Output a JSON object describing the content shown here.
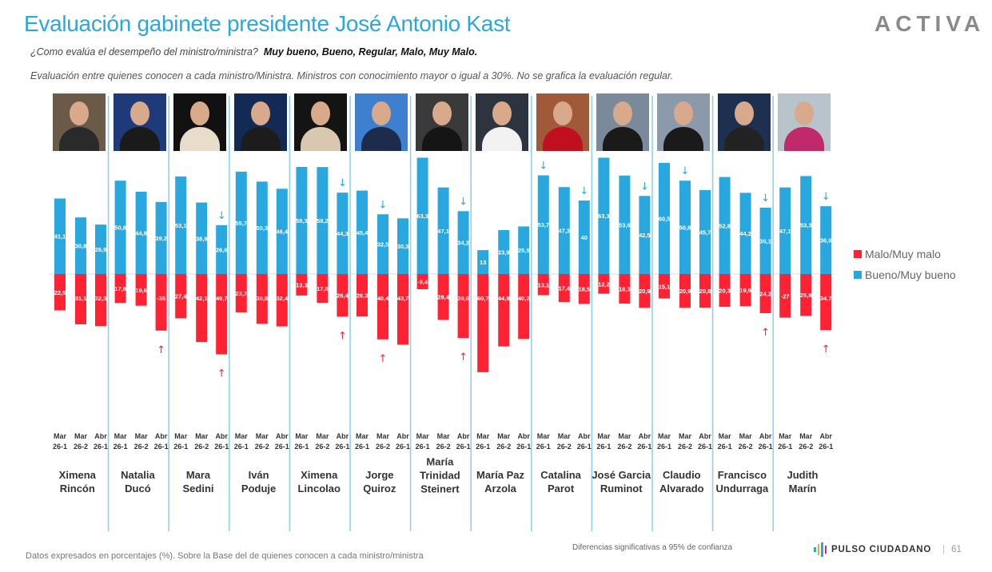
{
  "header": {
    "title": "Evaluación gabinete presidente José Antonio Kast",
    "brand_logo": "ACTIVA",
    "question": "¿Como evalúa el desempeño del ministro/ministra?",
    "options": "Muy bueno, Bueno, Regular, Malo, Muy Malo.",
    "note": "Evaluación entre quienes conocen a cada ministro/Ministra. Ministros con conocimiento mayor o igual a 30%. No se grafica la evaluación regular."
  },
  "footer": {
    "base_note": "Datos expresados en porcentajes (%). Sobre la Base del de quienes conocen a cada ministro/ministra",
    "significance_note": "Diferencias  significativas a 95% de confianza",
    "brand": "PULSO CIUDADANO",
    "page_number": "61"
  },
  "colors": {
    "positive": "#29a8e0",
    "negative": "#ff2233",
    "title": "#29a8e0",
    "divider": "#8fd0ef"
  },
  "chart_data": {
    "type": "bar",
    "title": "Evaluación gabinete presidente José Antonio Kast",
    "xlabel": "",
    "ylabel": "",
    "ylim": [
      -65,
      65
    ],
    "grid": false,
    "legend_position": "right",
    "legend": [
      "Malo/Muy malo",
      "Bueno/Muy bueno"
    ],
    "periods": [
      {
        "month": "Mar",
        "wave": "26-1"
      },
      {
        "month": "Mar",
        "wave": "26-2"
      },
      {
        "month": "Abr",
        "wave": "26-1"
      }
    ],
    "ministers": [
      {
        "name": [
          "Ximena",
          "Rincón"
        ],
        "photo_colors": [
          "#6b5a48",
          "#2a2a2a"
        ],
        "bueno": [
          41.1,
          30.8,
          26.9
        ],
        "bueno_labels": [
          "41,1",
          "30,8",
          "26,9"
        ],
        "malo": [
          22.5,
          31.1,
          32.3
        ],
        "malo_labels": [
          "22,5",
          "31,1",
          "32,3"
        ],
        "down_arrow": [
          false,
          false,
          false
        ],
        "up_arrow": [
          false,
          false,
          false
        ]
      },
      {
        "name": [
          "Natalia",
          "Ducó"
        ],
        "photo_colors": [
          "#1e3a7a",
          "#1a1a1a"
        ],
        "bueno": [
          50.8,
          44.8,
          39.2
        ],
        "bueno_labels": [
          "50,8",
          "44,8",
          "39,2"
        ],
        "malo": [
          17.9,
          19.6,
          35
        ],
        "malo_labels": [
          "17,9",
          "19,6",
          "-35"
        ],
        "down_arrow": [
          false,
          false,
          false
        ],
        "up_arrow": [
          false,
          false,
          true
        ]
      },
      {
        "name": [
          "Mara",
          "Sedini"
        ],
        "photo_colors": [
          "#111111",
          "#e8dccb"
        ],
        "bueno": [
          53.1,
          38.9,
          26.6
        ],
        "bueno_labels": [
          "53,1",
          "38,9",
          "26,6"
        ],
        "malo": [
          27.4,
          42.1,
          49.7
        ],
        "malo_labels": [
          "27,4",
          "42,1",
          "49,7"
        ],
        "down_arrow": [
          false,
          false,
          true
        ],
        "up_arrow": [
          false,
          false,
          true
        ]
      },
      {
        "name": [
          "Iván",
          "Poduje"
        ],
        "photo_colors": [
          "#132a55",
          "#1c1c1c"
        ],
        "bueno": [
          55.7,
          50.3,
          46.4
        ],
        "bueno_labels": [
          "55,7",
          "50,3",
          "46,4"
        ],
        "malo": [
          23.7,
          30.8,
          32.4
        ],
        "malo_labels": [
          "23,7",
          "30,8",
          "32,4"
        ],
        "down_arrow": [
          false,
          false,
          false
        ],
        "up_arrow": [
          false,
          false,
          false
        ]
      },
      {
        "name": [
          "Ximena",
          "Lincolao"
        ],
        "photo_colors": [
          "#141414",
          "#d9c8b0"
        ],
        "bueno": [
          58.3,
          58.2,
          44.3
        ],
        "bueno_labels": [
          "58,3",
          "58,2",
          "44,3"
        ],
        "malo": [
          13.3,
          17.8,
          26.4
        ],
        "malo_labels": [
          "13,3",
          "17,8",
          "26,4"
        ],
        "down_arrow": [
          false,
          false,
          true
        ],
        "up_arrow": [
          false,
          false,
          true
        ]
      },
      {
        "name": [
          "Jorge",
          "Quiroz"
        ],
        "photo_colors": [
          "#3f7fd0",
          "#1d2b4d"
        ],
        "bueno": [
          45.4,
          32.5,
          30.3
        ],
        "bueno_labels": [
          "45,4",
          "32,5",
          "30,3"
        ],
        "malo": [
          26.3,
          40.4,
          43.7
        ],
        "malo_labels": [
          "26,3",
          "40,4",
          "43,7"
        ],
        "down_arrow": [
          false,
          true,
          false
        ],
        "up_arrow": [
          false,
          true,
          false
        ]
      },
      {
        "name": [
          "María",
          "Trinidad",
          "Steinert"
        ],
        "photo_colors": [
          "#3a3a3a",
          "#151515"
        ],
        "bueno": [
          63.3,
          47.1,
          34.2
        ],
        "bueno_labels": [
          "63,3",
          "47,1",
          "34,2"
        ],
        "malo": [
          9.4,
          28.4,
          39.6
        ],
        "malo_labels": [
          "-9,4",
          "28,4",
          "39,6"
        ],
        "down_arrow": [
          false,
          false,
          true
        ],
        "up_arrow": [
          false,
          false,
          true
        ]
      },
      {
        "name": [
          "María Paz",
          "Arzola"
        ],
        "photo_colors": [
          "#2d3440",
          "#f2f2f2"
        ],
        "bueno": [
          13,
          23.9,
          25.9
        ],
        "bueno_labels": [
          "13",
          "23,9",
          "25,9"
        ],
        "malo": [
          60.7,
          44.8,
          40.2
        ],
        "malo_labels": [
          "60,7",
          "44,8",
          "40,2"
        ],
        "down_arrow": [
          false,
          false,
          false
        ],
        "up_arrow": [
          false,
          false,
          false
        ]
      },
      {
        "name": [
          "Catalina",
          "Parot"
        ],
        "photo_colors": [
          "#a05a3a",
          "#c01020"
        ],
        "bueno": [
          53.7,
          47.3,
          40
        ],
        "bueno_labels": [
          "53,7",
          "47,3",
          "40"
        ],
        "malo": [
          13.1,
          17.4,
          18.5
        ],
        "malo_labels": [
          "13,1",
          "17,4",
          "18,5"
        ],
        "down_arrow": [
          true,
          false,
          true
        ],
        "up_arrow": [
          false,
          false,
          false
        ]
      },
      {
        "name": [
          "José Garcia",
          "Ruminot"
        ],
        "photo_colors": [
          "#7a8a9a",
          "#1a1a1a"
        ],
        "bueno": [
          63.3,
          53.6,
          42.5
        ],
        "bueno_labels": [
          "63,3",
          "53,6",
          "42,5"
        ],
        "malo": [
          12.2,
          18.3,
          20.9
        ],
        "malo_labels": [
          "12,2",
          "18,3",
          "20,9"
        ],
        "down_arrow": [
          false,
          false,
          true
        ],
        "up_arrow": [
          false,
          false,
          false
        ]
      },
      {
        "name": [
          "Claudio",
          "Alvarado"
        ],
        "photo_colors": [
          "#8a9aaa",
          "#1a1a1a"
        ],
        "bueno": [
          60.5,
          50.8,
          45.7
        ],
        "bueno_labels": [
          "60,5",
          "50,8",
          "45,7"
        ],
        "malo": [
          15.1,
          20.9,
          20.8
        ],
        "malo_labels": [
          "15,1",
          "20,9",
          "20,8"
        ],
        "down_arrow": [
          false,
          true,
          false
        ],
        "up_arrow": [
          false,
          false,
          false
        ]
      },
      {
        "name": [
          "Francisco",
          "Undurraga"
        ],
        "photo_colors": [
          "#1e3050",
          "#222222"
        ],
        "bueno": [
          52.8,
          44.2,
          36.1
        ],
        "bueno_labels": [
          "52,8",
          "44,2",
          "36,1"
        ],
        "malo": [
          20.3,
          19.9,
          24.2
        ],
        "malo_labels": [
          "20,3",
          "19,9",
          "24,2"
        ],
        "down_arrow": [
          false,
          false,
          true
        ],
        "up_arrow": [
          false,
          false,
          true
        ]
      },
      {
        "name": [
          "Judith",
          "Marín"
        ],
        "photo_colors": [
          "#b8c4cc",
          "#c02a6a"
        ],
        "bueno": [
          47.1,
          53.3,
          36.9
        ],
        "bueno_labels": [
          "47,1",
          "53,3",
          "36,9"
        ],
        "malo": [
          27,
          25.9,
          34.7
        ],
        "malo_labels": [
          "-27",
          "25,9",
          "34,7"
        ],
        "down_arrow": [
          false,
          false,
          true
        ],
        "up_arrow": [
          false,
          false,
          true
        ]
      }
    ]
  }
}
